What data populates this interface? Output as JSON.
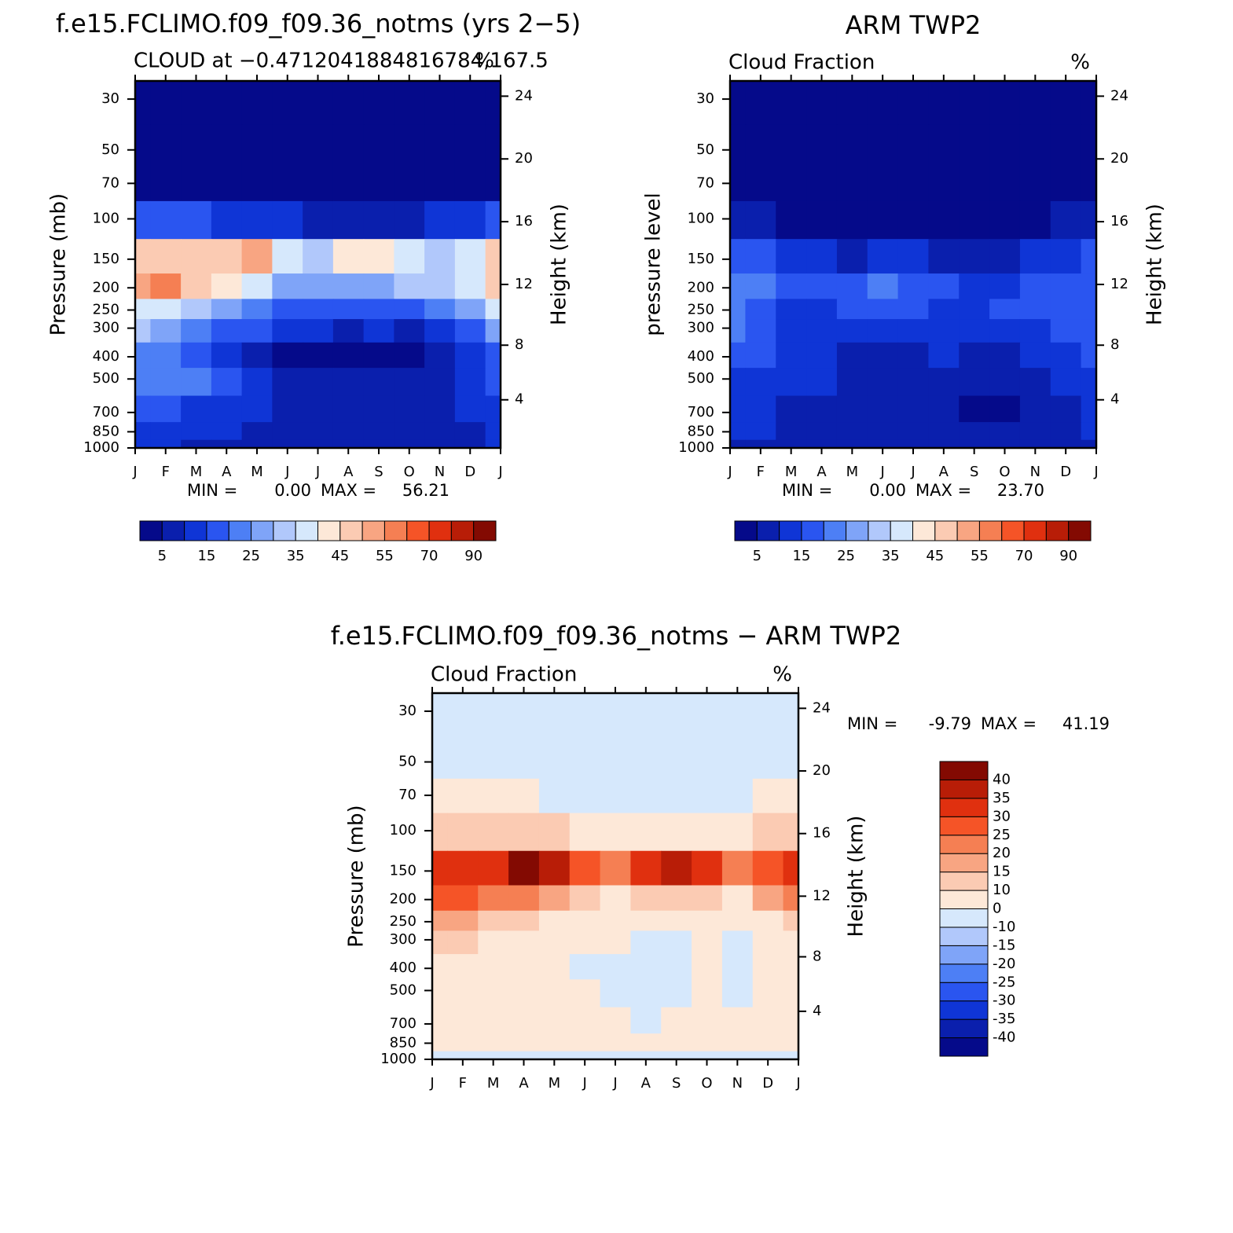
{
  "chart_data": [
    {
      "type": "contour",
      "title": "f.e15.FCLIMO.f09_f09.36_notms (yrs 2−5)",
      "subtitle": "CLOUD at −0.4712041884816784,167.5",
      "units": "%",
      "ylabel": "Pressure (mb)",
      "y2label": "Height (km)",
      "categories": [
        "J",
        "F",
        "M",
        "A",
        "M",
        "J",
        "J",
        "A",
        "S",
        "O",
        "N",
        "D",
        "J"
      ],
      "y": [
        30,
        50,
        70,
        100,
        150,
        200,
        250,
        300,
        400,
        500,
        700,
        850,
        1000
      ],
      "z": [
        [
          2,
          2,
          2,
          2,
          2,
          2,
          2,
          2,
          2,
          2,
          2,
          2,
          2
        ],
        [
          2,
          2,
          2,
          2,
          2,
          2,
          2,
          2,
          2,
          2,
          2,
          2,
          2
        ],
        [
          3,
          3,
          3,
          2,
          2,
          2,
          2,
          2,
          2,
          2,
          2,
          3,
          3
        ],
        [
          15,
          15,
          15,
          12,
          12,
          10,
          8,
          8,
          9,
          8,
          10,
          12,
          15
        ],
        [
          45,
          48,
          45,
          48,
          50,
          38,
          32,
          40,
          44,
          38,
          32,
          35,
          45
        ],
        [
          52,
          55,
          45,
          40,
          35,
          28,
          25,
          25,
          28,
          30,
          30,
          35,
          45
        ],
        [
          35,
          38,
          30,
          25,
          22,
          18,
          15,
          15,
          18,
          18,
          20,
          25,
          35
        ],
        [
          32,
          28,
          22,
          18,
          15,
          12,
          10,
          9,
          10,
          9,
          12,
          18,
          25
        ],
        [
          22,
          20,
          15,
          10,
          5,
          4,
          4,
          3,
          3,
          3,
          5,
          12,
          18
        ],
        [
          22,
          22,
          20,
          15,
          10,
          6,
          6,
          6,
          6,
          6,
          8,
          12,
          18
        ],
        [
          15,
          15,
          14,
          12,
          10,
          6,
          6,
          6,
          6,
          6,
          8,
          10,
          14
        ],
        [
          14,
          13,
          12,
          10,
          9,
          6,
          5,
          6,
          6,
          6,
          7,
          9,
          12
        ],
        [
          10,
          10,
          9,
          8,
          8,
          7,
          7,
          7,
          7,
          7,
          7,
          8,
          10
        ]
      ],
      "ylim": [
        1000,
        25
      ],
      "log": true,
      "yticks": [
        30,
        50,
        70,
        100,
        150,
        200,
        250,
        300,
        400,
        500,
        700,
        850,
        1000
      ],
      "y2ticks": [
        4,
        8,
        12,
        16,
        20,
        24
      ],
      "min_text": "MIN =",
      "min": {
        "value": 0,
        "label": "0.00"
      },
      "max_text": "MAX =",
      "max": 56.21,
      "levels": [
        5,
        10,
        15,
        20,
        25,
        30,
        35,
        40,
        45,
        50,
        55,
        60,
        70,
        80,
        90
      ],
      "colorbar_ticks": [
        5,
        15,
        25,
        35,
        45,
        55,
        70,
        90
      ],
      "colorbar_orientation": "horizontal",
      "colors": [
        "#050a8a",
        "#0a1fad",
        "#0f35d6",
        "#2a55f0",
        "#4d7ff5",
        "#7fa4f8",
        "#b1c8fb",
        "#d6e8fc",
        "#fde8d8",
        "#fbcbb3",
        "#f8a582",
        "#f57f53",
        "#f55427",
        "#e0300f",
        "#b81d07",
        "#830a02"
      ]
    },
    {
      "type": "contour",
      "title": "ARM TWP2",
      "subtitle": "Cloud Fraction",
      "units": "%",
      "ylabel": "pressure level",
      "y2label": "Height (km)",
      "categories": [
        "J",
        "F",
        "M",
        "A",
        "M",
        "J",
        "J",
        "A",
        "S",
        "O",
        "N",
        "D",
        "J"
      ],
      "y": [
        30,
        50,
        70,
        100,
        150,
        200,
        250,
        300,
        400,
        500,
        700,
        850,
        1000
      ],
      "z": [
        [
          2,
          2,
          2,
          2,
          2,
          2,
          2,
          2,
          2,
          2,
          2,
          2,
          2
        ],
        [
          2,
          2,
          2,
          2,
          2,
          2,
          2,
          2,
          2,
          2,
          2,
          2,
          2
        ],
        [
          2,
          2,
          2,
          2,
          2,
          2,
          2,
          2,
          2,
          2,
          2,
          2,
          2
        ],
        [
          9,
          6,
          4,
          3,
          3,
          3,
          2,
          3,
          3,
          3,
          4,
          5,
          8
        ],
        [
          18,
          16,
          12,
          10,
          9,
          11,
          10,
          9,
          6,
          8,
          12,
          14,
          17
        ],
        [
          22,
          20,
          15,
          15,
          18,
          20,
          17,
          15,
          14,
          14,
          16,
          18,
          18
        ],
        [
          21,
          19,
          14,
          13,
          15,
          16,
          15,
          14,
          14,
          15,
          15,
          17,
          17
        ],
        [
          20,
          17,
          14,
          12,
          13,
          14,
          14,
          13,
          12,
          13,
          14,
          15,
          16
        ],
        [
          16,
          15,
          13,
          10,
          9,
          9,
          9,
          10,
          7,
          8,
          12,
          14,
          15
        ],
        [
          14,
          14,
          12,
          10,
          9,
          9,
          9,
          9,
          6,
          6,
          9,
          12,
          13
        ],
        [
          12,
          10,
          9,
          8,
          6,
          8,
          7,
          8,
          4,
          4,
          8,
          9,
          11
        ],
        [
          11,
          10,
          9,
          8,
          8,
          8,
          8,
          8,
          7,
          7,
          8,
          9,
          10
        ],
        [
          8,
          8,
          8,
          7,
          7,
          7,
          7,
          7,
          7,
          7,
          7,
          7,
          8
        ]
      ],
      "ylim": [
        1000,
        25
      ],
      "log": true,
      "yticks": [
        30,
        50,
        70,
        100,
        150,
        200,
        250,
        300,
        400,
        500,
        700,
        850,
        1000
      ],
      "y2ticks": [
        4,
        8,
        12,
        16,
        20,
        24
      ],
      "min_text": "MIN =",
      "min": {
        "value": 0,
        "label": "0.00"
      },
      "max_text": "MAX =",
      "max": {
        "value": 23.7,
        "label": "23.70"
      },
      "levels": [
        5,
        10,
        15,
        20,
        25,
        30,
        35,
        40,
        45,
        50,
        55,
        60,
        70,
        80,
        90
      ],
      "colorbar_ticks": [
        5,
        15,
        25,
        35,
        45,
        55,
        70,
        90
      ],
      "colorbar_orientation": "horizontal",
      "colors": [
        "#050a8a",
        "#0a1fad",
        "#0f35d6",
        "#2a55f0",
        "#4d7ff5",
        "#7fa4f8",
        "#b1c8fb",
        "#d6e8fc",
        "#fde8d8",
        "#fbcbb3",
        "#f8a582",
        "#f57f53",
        "#f55427",
        "#e0300f",
        "#b81d07",
        "#830a02"
      ]
    },
    {
      "type": "contour",
      "title": "f.e15.FCLIMO.f09_f09.36_notms − ARM TWP2",
      "subtitle": "Cloud Fraction",
      "units": "%",
      "ylabel": "Pressure (mb)",
      "y2label": "Height (km)",
      "categories": [
        "J",
        "F",
        "M",
        "A",
        "M",
        "J",
        "J",
        "A",
        "S",
        "O",
        "N",
        "D",
        "J"
      ],
      "y": [
        30,
        50,
        70,
        100,
        150,
        200,
        250,
        300,
        400,
        500,
        700,
        850,
        1000
      ],
      "z": [
        [
          -5,
          -5,
          -5,
          -5,
          -5,
          -5,
          -5,
          -5,
          -5,
          -5,
          -5,
          -5,
          -5
        ],
        [
          -5,
          -5,
          -5,
          -5,
          -5,
          -5,
          -5,
          -5,
          -5,
          -5,
          -5,
          -5,
          -5
        ],
        [
          2,
          5,
          5,
          2,
          -5,
          -5,
          -5,
          -5,
          -5,
          -5,
          -5,
          2,
          2
        ],
        [
          12,
          14,
          12,
          10,
          10,
          8,
          8,
          8,
          8,
          8,
          8,
          10,
          12
        ],
        [
          30,
          30,
          33,
          42,
          38,
          26,
          24,
          32,
          38,
          30,
          22,
          28,
          32
        ],
        [
          25,
          26,
          22,
          22,
          18,
          10,
          8,
          10,
          12,
          10,
          8,
          15,
          20
        ],
        [
          15,
          16,
          12,
          10,
          8,
          5,
          5,
          5,
          5,
          4,
          4,
          8,
          12
        ],
        [
          12,
          10,
          8,
          5,
          3,
          2,
          2,
          -3,
          -3,
          2,
          -3,
          5,
          8
        ],
        [
          5,
          4,
          3,
          2,
          2,
          -3,
          -3,
          -3,
          -3,
          2,
          -3,
          2,
          3
        ],
        [
          3,
          3,
          3,
          2,
          2,
          2,
          -3,
          -3,
          -3,
          2,
          -3,
          2,
          3
        ],
        [
          2,
          2,
          2,
          2,
          2,
          2,
          2,
          -3,
          2,
          2,
          2,
          2,
          2
        ],
        [
          2,
          2,
          2,
          2,
          2,
          2,
          2,
          2,
          2,
          2,
          2,
          2,
          2
        ],
        [
          -3,
          -3,
          -3,
          -3,
          -3,
          -3,
          -3,
          -3,
          -3,
          -3,
          -3,
          -3,
          -3
        ]
      ],
      "ylim": [
        1000,
        25
      ],
      "log": true,
      "yticks": [
        30,
        50,
        70,
        100,
        150,
        200,
        250,
        300,
        400,
        500,
        700,
        850,
        1000
      ],
      "y2ticks": [
        4,
        8,
        12,
        16,
        20,
        24
      ],
      "min_text": "MIN =",
      "min": -9.79,
      "max_text": "MAX =",
      "max": 41.19,
      "levels": [
        -40,
        -35,
        -30,
        -25,
        -20,
        -15,
        -10,
        0,
        10,
        15,
        20,
        25,
        30,
        35,
        40
      ],
      "colorbar_ticks": [
        -40,
        -35,
        -30,
        -25,
        -20,
        -15,
        -10,
        0,
        10,
        15,
        20,
        25,
        30,
        35,
        40
      ],
      "colorbar_orientation": "vertical",
      "colors": [
        "#050a8a",
        "#0a1fad",
        "#0f35d6",
        "#2a55f0",
        "#4d7ff5",
        "#7fa4f8",
        "#b1c8fb",
        "#d6e8fc",
        "#fde8d8",
        "#fbcbb3",
        "#f8a582",
        "#f57f53",
        "#f55427",
        "#e0300f",
        "#b81d07",
        "#830a02"
      ]
    }
  ]
}
